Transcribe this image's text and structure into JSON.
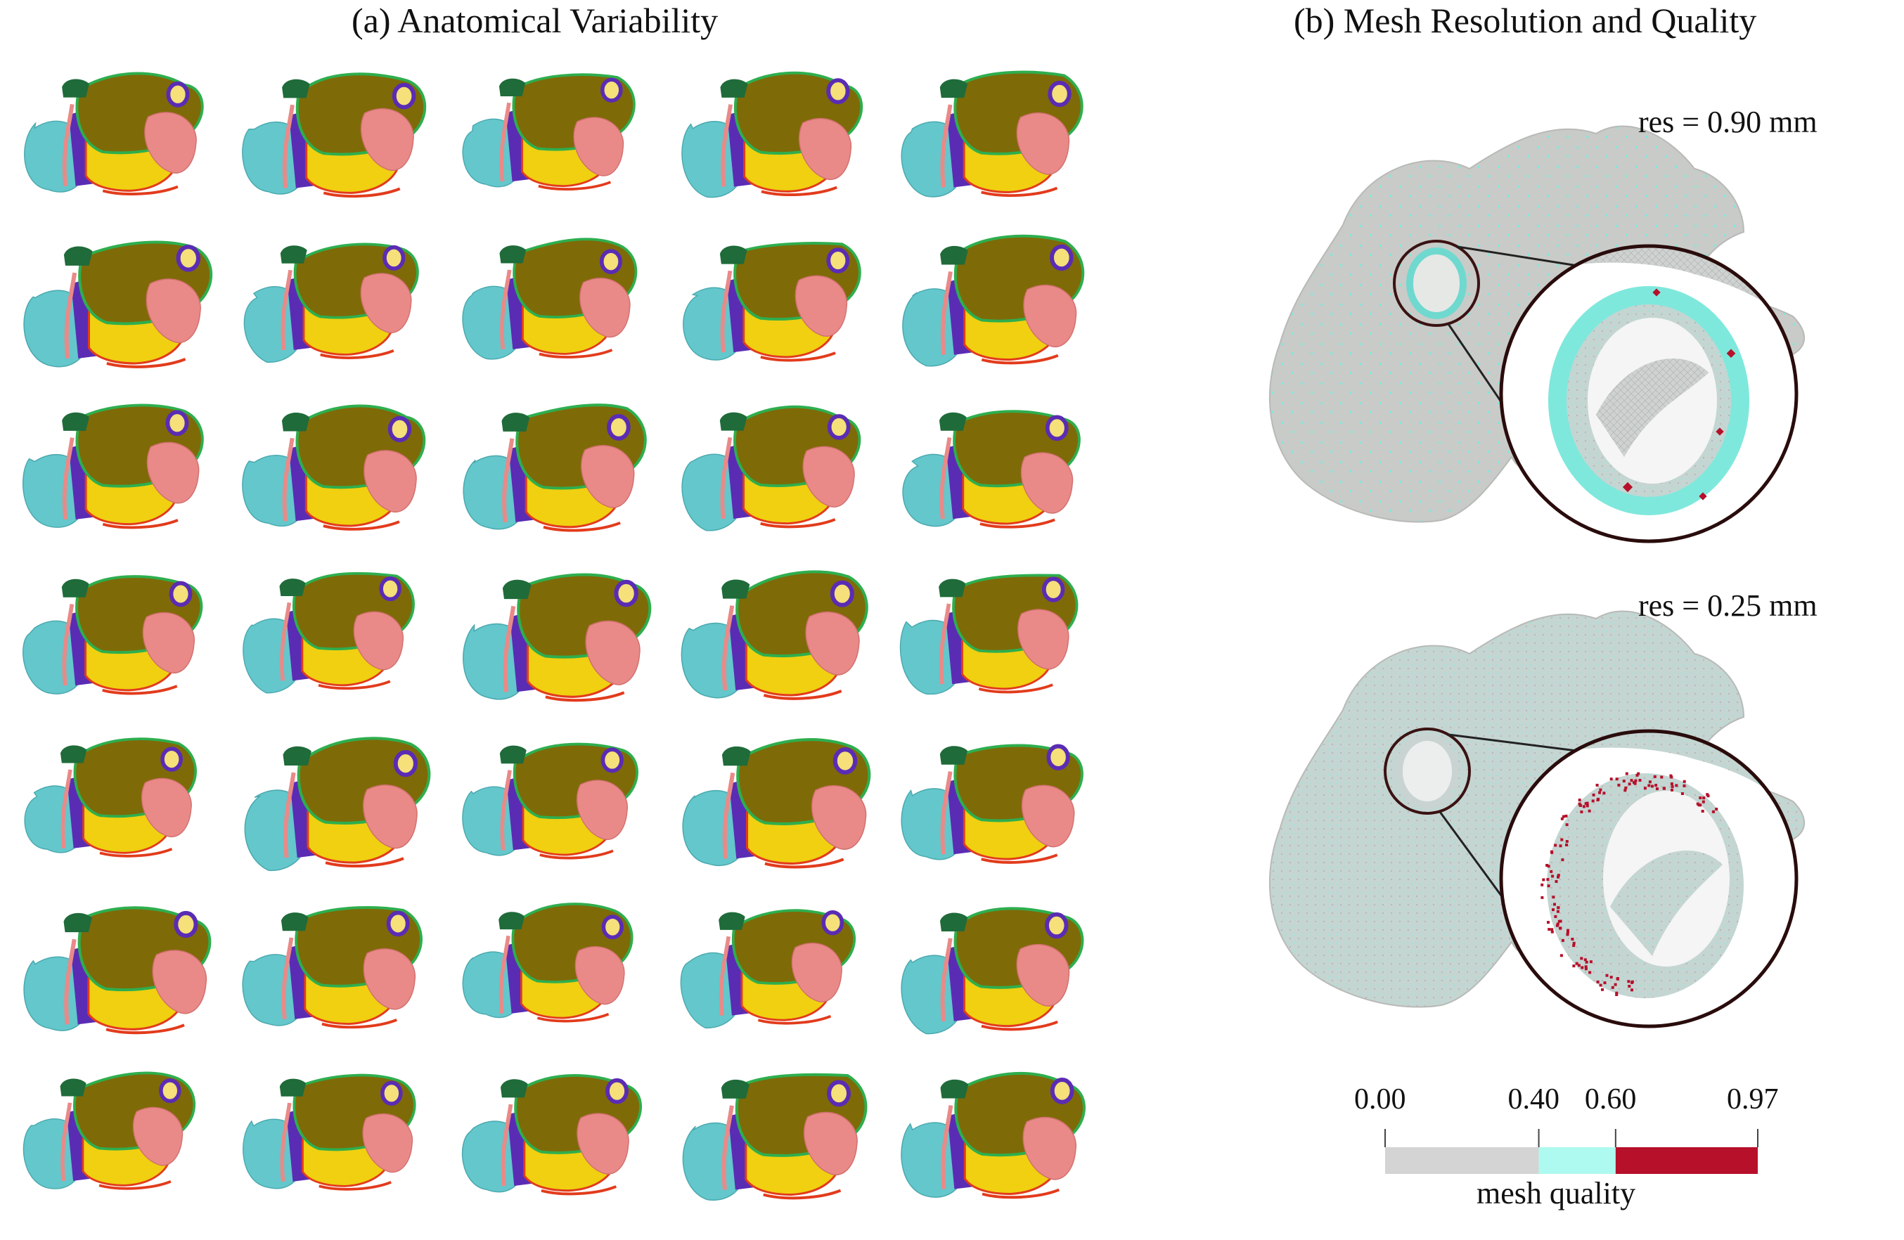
{
  "panel_a": {
    "title": "(a) Anatomical Variability",
    "grid": {
      "rows": 7,
      "cols": 5
    }
  },
  "panel_b": {
    "title": "(b) Mesh Resolution and Quality",
    "views": [
      {
        "label": "res = 0.90 mm"
      },
      {
        "label": "res = 0.25 mm"
      }
    ]
  },
  "colorbar": {
    "title": "mesh quality",
    "ticks": [
      "0.00",
      "0.40",
      "0.60",
      "0.97"
    ],
    "segments": [
      {
        "from": 0.0,
        "to": 0.4,
        "color": "#d4d4d4"
      },
      {
        "from": 0.4,
        "to": 0.6,
        "color": "#aefaf0"
      },
      {
        "from": 0.6,
        "to": 0.97,
        "color": "#b6102a"
      }
    ]
  },
  "colors": {
    "atrium_body": "#7f6a08",
    "appendage": "#e98a88",
    "chamber_teal": "#63c7cc",
    "septum_blue": "#5a2cb4",
    "valve_yellow": "#f0d010",
    "edge_green": "#2eae4e",
    "edge_red": "#e23b1c",
    "mesh_grey": "#c9cbc8",
    "mesh_red": "#b6102a"
  }
}
